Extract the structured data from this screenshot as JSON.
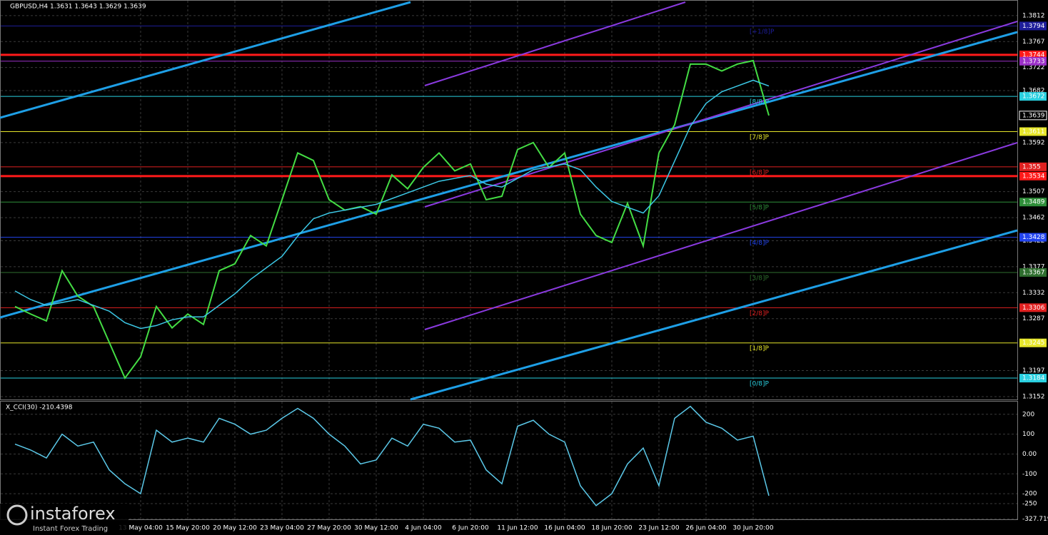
{
  "chart_data": [
    {
      "type": "line",
      "title": "GBPUSD,H4  1.3631 1.3643 1.3629 1.3639",
      "categories": [
        null,
        null,
        null,
        null,
        null,
        null,
        null,
        null,
        "13 May 04:00",
        null,
        null,
        "15 May 20:00",
        null,
        null,
        "20 May 12:00",
        null,
        null,
        "23 May 04:00",
        null,
        null,
        "27 May 20:00",
        null,
        null,
        "30 May 12:00",
        null,
        null,
        "4 Jun 04:00",
        null,
        null,
        "6 Jun 20:00",
        null,
        null,
        "11 Jun 12:00",
        null,
        null,
        "16 Jun 04:00",
        null,
        null,
        "18 Jun 20:00",
        null,
        null,
        "23 Jun 12:00",
        null,
        null,
        "26 Jun 04:00",
        null,
        null,
        "30 Jun 20:00",
        null
      ],
      "series": [
        {
          "color": "#44dd44",
          "values": [
            1.3308,
            1.3295,
            1.3283,
            1.337,
            1.3326,
            1.3308,
            1.3246,
            1.3184,
            1.3221,
            1.3308,
            1.3271,
            1.3295,
            1.3277,
            1.337,
            1.3382,
            1.3431,
            1.3413,
            1.3493,
            1.3574,
            1.3561,
            1.3493,
            1.3475,
            1.3481,
            1.3468,
            1.3536,
            1.3512,
            1.3549,
            1.3574,
            1.3543,
            1.3555,
            1.3493,
            1.3499,
            1.358,
            1.3592,
            1.3549,
            1.3574,
            1.3468,
            1.3431,
            1.3419,
            1.3487,
            1.3413,
            1.3574,
            1.3623,
            1.3728,
            1.3728,
            1.3716,
            1.3728,
            1.3734,
            1.3639
          ]
        },
        {
          "color": "#3cc8e6",
          "values": [
            1.3335,
            1.332,
            1.331,
            1.3315,
            1.332,
            1.331,
            1.33,
            1.328,
            1.327,
            1.3275,
            1.3285,
            1.329,
            1.329,
            1.331,
            1.333,
            1.3355,
            1.3375,
            1.3395,
            1.343,
            1.346,
            1.347,
            1.3475,
            1.348,
            1.3485,
            1.3495,
            1.3505,
            1.3515,
            1.3525,
            1.353,
            1.3535,
            1.352,
            1.3515,
            1.353,
            1.3545,
            1.355,
            1.3555,
            1.3545,
            1.3515,
            1.349,
            1.348,
            1.347,
            1.35,
            1.356,
            1.362,
            1.366,
            1.368,
            1.369,
            1.37,
            1.369
          ]
        }
      ],
      "ylim": [
        1.3147,
        1.3839
      ],
      "yticks": [
        1.3812,
        1.3767,
        1.3722,
        1.3682,
        1.3592,
        1.3507,
        1.3462,
        1.3422,
        1.3377,
        1.3332,
        1.3287,
        1.3197,
        1.3152
      ],
      "grid": true,
      "last": 1.3639,
      "levels": [
        {
          "value": 1.3794,
          "color": "#1e1e9a",
          "label": "[+1/8]P"
        },
        {
          "value": 1.3744,
          "color": "#ff1a1a",
          "thick": true
        },
        {
          "value": 1.3733,
          "color": "#9b30c8"
        },
        {
          "value": 1.3672,
          "color": "#2ad0e0",
          "label": "[8/8]P"
        },
        {
          "value": 1.3611,
          "color": "#e6e62a",
          "label": "[7/8]P"
        },
        {
          "value": 1.355,
          "color": "#e02020",
          "label": "[6/8]P"
        },
        {
          "value": 1.3534,
          "color": "#ff1a1a",
          "thick": true
        },
        {
          "value": 1.3489,
          "color": "#2f8f3a",
          "label": "[5/8]P"
        },
        {
          "value": 1.3428,
          "color": "#2244ee",
          "label": "[4/8]P"
        },
        {
          "value": 1.3367,
          "color": "#2e6e2e",
          "label": "[3/8]P"
        },
        {
          "value": 1.3306,
          "color": "#e02020",
          "label": "[2/8]P"
        },
        {
          "value": 1.3245,
          "color": "#e6e62a",
          "label": "[1/8]P"
        },
        {
          "value": 1.3184,
          "color": "#2ad0e0",
          "label": "[0/8]P"
        }
      ]
    },
    {
      "type": "line",
      "title": "X_CCI(30) -210.4398",
      "series": [
        {
          "color": "#5bc8e8",
          "values": [
            50,
            20,
            -20,
            100,
            40,
            60,
            -80,
            -150,
            -200,
            120,
            60,
            80,
            60,
            180,
            150,
            100,
            120,
            180,
            230,
            180,
            100,
            40,
            -50,
            -30,
            80,
            40,
            150,
            130,
            60,
            70,
            -80,
            -150,
            140,
            170,
            100,
            60,
            -160,
            -260,
            -200,
            -50,
            30,
            -160,
            180,
            240,
            160,
            130,
            70,
            90,
            -210
          ]
        }
      ],
      "ylim": [
        -329,
        264
      ],
      "yticks": [
        200,
        100,
        {
          "value": 0,
          "label": "0.00"
        },
        -100,
        -200,
        -250,
        -327.719
      ],
      "grid": true
    }
  ],
  "watermark": {
    "brand": "instaforex",
    "tagline": "Instant Forex Trading"
  }
}
